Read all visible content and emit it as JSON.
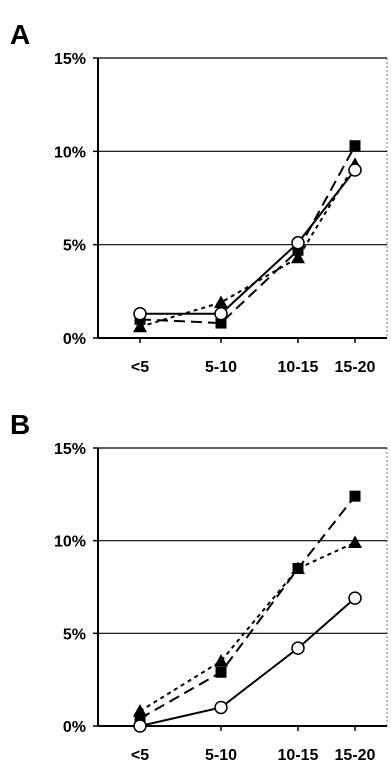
{
  "chart_data": [
    {
      "panel_label": "A",
      "type": "line",
      "categories": [
        "<5",
        "5-10",
        "10-15",
        "15-20"
      ],
      "y_tick_labels": [
        "0%",
        "5%",
        "10%",
        "15%"
      ],
      "ylim": [
        0,
        15
      ],
      "y_unit": "%",
      "grid": "horizontal",
      "series": [
        {
          "marker": "circle-open",
          "line": "solid",
          "color": "#000000",
          "values": [
            1.3,
            1.3,
            5.1,
            9.0
          ]
        },
        {
          "marker": "square",
          "line": "dashed",
          "color": "#000000",
          "values": [
            1.0,
            0.8,
            4.7,
            10.3
          ]
        },
        {
          "marker": "triangle",
          "line": "dotted",
          "color": "#000000",
          "values": [
            0.6,
            1.9,
            4.3,
            9.3
          ]
        }
      ]
    },
    {
      "panel_label": "B",
      "type": "line",
      "categories": [
        "<5",
        "5-10",
        "10-15",
        "15-20"
      ],
      "y_tick_labels": [
        "0%",
        "5%",
        "10%",
        "15%"
      ],
      "ylim": [
        0,
        15
      ],
      "y_unit": "%",
      "grid": "horizontal",
      "series": [
        {
          "marker": "circle-open",
          "line": "solid",
          "color": "#000000",
          "values": [
            0.0,
            1.0,
            4.2,
            6.9
          ]
        },
        {
          "marker": "square",
          "line": "dashed",
          "color": "#000000",
          "values": [
            0.4,
            2.9,
            8.5,
            12.4
          ]
        },
        {
          "marker": "triangle",
          "line": "dotted",
          "color": "#000000",
          "values": [
            0.8,
            3.5,
            8.5,
            9.9
          ]
        }
      ]
    }
  ]
}
